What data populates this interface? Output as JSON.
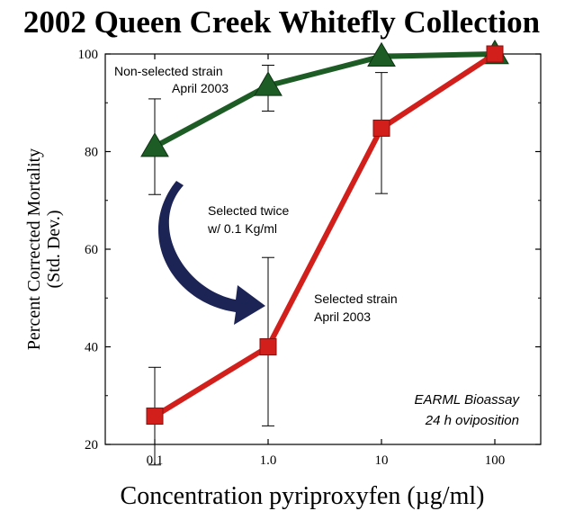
{
  "chart_data": {
    "type": "line",
    "title": "2002 Queen Creek Whitefly Collection",
    "xlabel": "Concentration pyriproxyfen (µg/ml)",
    "ylabel": [
      "Percent Corrected Mortality",
      "(Std. Dev.)"
    ],
    "xscale": "log",
    "categories": [
      "0.1",
      "1.0",
      "10",
      "100"
    ],
    "x": [
      0.1,
      1.0,
      10,
      100
    ],
    "ylim": [
      20,
      100
    ],
    "yticks": [
      20,
      40,
      60,
      80,
      100
    ],
    "grid": false,
    "series": [
      {
        "name": "Non-selected strain April 2003",
        "label_lines": [
          "Non-selected strain",
          "April 2003"
        ],
        "color": "#1e5c25",
        "marker": "triangle",
        "values": [
          81,
          93.5,
          99.5,
          100
        ],
        "err_low": [
          71.2,
          88.3,
          99.5,
          100
        ],
        "err_high": [
          90.8,
          97.7,
          99.5,
          100
        ]
      },
      {
        "name": "Selected strain April 2003",
        "label_lines": [
          "Selected strain",
          "April 2003"
        ],
        "color": "#d21f1b",
        "marker": "square",
        "values": [
          25.8,
          40,
          84.8,
          100
        ],
        "err_low": [
          15.8,
          23.8,
          71.4,
          100
        ],
        "err_high": [
          35.8,
          58.3,
          96.2,
          100
        ]
      }
    ],
    "annotations": {
      "arrow_label": [
        "Selected twice",
        "w/ 0.1 Kg/ml"
      ],
      "arrow_color": "#1c2456",
      "bioassay": [
        "EARML Bioassay",
        "24 h oviposition"
      ]
    }
  }
}
